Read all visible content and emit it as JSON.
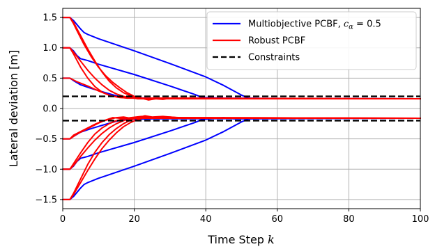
{
  "chart_data": {
    "type": "line",
    "xlabel": "Time Step",
    "xlabel_var": "k",
    "ylabel": "Lateral deviation [m]",
    "xlim": [
      0,
      100
    ],
    "ylim": [
      -1.65,
      1.65
    ],
    "xticks": [
      0,
      20,
      40,
      60,
      80,
      100
    ],
    "yticks": [
      -1.5,
      -1.0,
      -0.5,
      0.0,
      0.5,
      1.0,
      1.5
    ],
    "ytick_labels": [
      "−1.5",
      "−1.0",
      "−0.5",
      "0.0",
      "0.5",
      "1.0",
      "1.5"
    ],
    "grid": true,
    "legend_position": "upper-right",
    "legend": [
      {
        "label": "Multiobjective PCBF, ",
        "math": "c",
        "sub": "α",
        "suffix": " = 0.5",
        "color": "#0000ff",
        "style": "solid"
      },
      {
        "label": "Robust PCBF",
        "color": "#ff0000",
        "style": "solid"
      },
      {
        "label": "Constraints",
        "color": "#000000",
        "style": "dashed"
      }
    ],
    "constraints": [
      0.2,
      -0.2
    ],
    "series": [
      {
        "group": "Multiobjective PCBF",
        "color": "#0000ff",
        "points": [
          [
            0,
            1.5
          ],
          [
            2,
            1.5
          ],
          [
            3,
            1.45
          ],
          [
            4,
            1.38
          ],
          [
            5,
            1.31
          ],
          [
            6,
            1.25
          ],
          [
            7,
            1.22
          ],
          [
            10,
            1.15
          ],
          [
            20,
            0.95
          ],
          [
            30,
            0.74
          ],
          [
            40,
            0.52
          ],
          [
            45,
            0.38
          ],
          [
            50,
            0.22
          ],
          [
            52,
            0.17
          ],
          [
            60,
            0.16
          ],
          [
            100,
            0.16
          ]
        ]
      },
      {
        "group": "Multiobjective PCBF",
        "color": "#0000ff",
        "points": [
          [
            0,
            1.0
          ],
          [
            2,
            1.0
          ],
          [
            3,
            0.95
          ],
          [
            4,
            0.87
          ],
          [
            5,
            0.82
          ],
          [
            7,
            0.79
          ],
          [
            10,
            0.73
          ],
          [
            20,
            0.56
          ],
          [
            30,
            0.37
          ],
          [
            37,
            0.23
          ],
          [
            39,
            0.18
          ],
          [
            45,
            0.17
          ],
          [
            100,
            0.16
          ]
        ]
      },
      {
        "group": "Multiobjective PCBF",
        "color": "#0000ff",
        "points": [
          [
            0,
            0.5
          ],
          [
            2,
            0.5
          ],
          [
            3,
            0.46
          ],
          [
            5,
            0.39
          ],
          [
            8,
            0.33
          ],
          [
            12,
            0.26
          ],
          [
            15,
            0.21
          ],
          [
            17,
            0.18
          ],
          [
            25,
            0.17
          ],
          [
            100,
            0.16
          ]
        ]
      },
      {
        "group": "Multiobjective PCBF",
        "color": "#0000ff",
        "points": [
          [
            0,
            -0.5
          ],
          [
            2,
            -0.5
          ],
          [
            3,
            -0.46
          ],
          [
            5,
            -0.39
          ],
          [
            8,
            -0.33
          ],
          [
            12,
            -0.26
          ],
          [
            15,
            -0.21
          ],
          [
            17,
            -0.18
          ],
          [
            25,
            -0.17
          ],
          [
            100,
            -0.16
          ]
        ]
      },
      {
        "group": "Multiobjective PCBF",
        "color": "#0000ff",
        "points": [
          [
            0,
            -1.0
          ],
          [
            2,
            -1.0
          ],
          [
            3,
            -0.95
          ],
          [
            4,
            -0.87
          ],
          [
            5,
            -0.82
          ],
          [
            7,
            -0.79
          ],
          [
            10,
            -0.73
          ],
          [
            20,
            -0.56
          ],
          [
            30,
            -0.37
          ],
          [
            37,
            -0.23
          ],
          [
            39,
            -0.18
          ],
          [
            45,
            -0.15
          ],
          [
            48,
            -0.17
          ],
          [
            100,
            -0.16
          ]
        ]
      },
      {
        "group": "Multiobjective PCBF",
        "color": "#0000ff",
        "points": [
          [
            0,
            -1.5
          ],
          [
            2,
            -1.5
          ],
          [
            3,
            -1.45
          ],
          [
            4,
            -1.38
          ],
          [
            5,
            -1.31
          ],
          [
            6,
            -1.25
          ],
          [
            7,
            -1.22
          ],
          [
            10,
            -1.15
          ],
          [
            20,
            -0.95
          ],
          [
            30,
            -0.74
          ],
          [
            40,
            -0.52
          ],
          [
            45,
            -0.38
          ],
          [
            50,
            -0.22
          ],
          [
            52,
            -0.17
          ],
          [
            60,
            -0.16
          ],
          [
            100,
            -0.16
          ]
        ]
      },
      {
        "group": "Robust PCBF",
        "color": "#ff0000",
        "points": [
          [
            0,
            1.5
          ],
          [
            2,
            1.5
          ],
          [
            3,
            1.4
          ],
          [
            4,
            1.28
          ],
          [
            6,
            1.05
          ],
          [
            8,
            0.85
          ],
          [
            10,
            0.68
          ],
          [
            12,
            0.54
          ],
          [
            14,
            0.43
          ],
          [
            16,
            0.34
          ],
          [
            18,
            0.26
          ],
          [
            20,
            0.2
          ],
          [
            22,
            0.17
          ],
          [
            24,
            0.14
          ],
          [
            26,
            0.16
          ],
          [
            28,
            0.15
          ],
          [
            30,
            0.17
          ],
          [
            35,
            0.16
          ],
          [
            100,
            0.16
          ]
        ]
      },
      {
        "group": "Robust PCBF",
        "color": "#ff0000",
        "points": [
          [
            0,
            1.5
          ],
          [
            2,
            1.5
          ],
          [
            3,
            1.42
          ],
          [
            5,
            1.2
          ],
          [
            7,
            0.98
          ],
          [
            9,
            0.78
          ],
          [
            11,
            0.6
          ],
          [
            13,
            0.45
          ],
          [
            15,
            0.34
          ],
          [
            17,
            0.26
          ],
          [
            19,
            0.21
          ],
          [
            21,
            0.18
          ],
          [
            23,
            0.16
          ],
          [
            25,
            0.17
          ],
          [
            100,
            0.16
          ]
        ]
      },
      {
        "group": "Robust PCBF",
        "color": "#ff0000",
        "points": [
          [
            0,
            1.0
          ],
          [
            2,
            1.0
          ],
          [
            3,
            0.93
          ],
          [
            5,
            0.78
          ],
          [
            7,
            0.63
          ],
          [
            9,
            0.5
          ],
          [
            11,
            0.39
          ],
          [
            13,
            0.3
          ],
          [
            15,
            0.24
          ],
          [
            17,
            0.2
          ],
          [
            19,
            0.18
          ],
          [
            21,
            0.16
          ],
          [
            100,
            0.16
          ]
        ]
      },
      {
        "group": "Robust PCBF",
        "color": "#ff0000",
        "points": [
          [
            0,
            1.0
          ],
          [
            2,
            1.0
          ],
          [
            3,
            0.9
          ],
          [
            5,
            0.68
          ],
          [
            7,
            0.5
          ],
          [
            9,
            0.36
          ],
          [
            11,
            0.27
          ],
          [
            13,
            0.22
          ],
          [
            15,
            0.19
          ],
          [
            18,
            0.17
          ],
          [
            100,
            0.16
          ]
        ]
      },
      {
        "group": "Robust PCBF",
        "color": "#ff0000",
        "points": [
          [
            0,
            0.5
          ],
          [
            2,
            0.5
          ],
          [
            4,
            0.44
          ],
          [
            7,
            0.37
          ],
          [
            10,
            0.29
          ],
          [
            13,
            0.22
          ],
          [
            16,
            0.18
          ],
          [
            20,
            0.17
          ],
          [
            100,
            0.16
          ]
        ]
      },
      {
        "group": "Robust PCBF",
        "color": "#ff0000",
        "points": [
          [
            0,
            -0.5
          ],
          [
            2,
            -0.5
          ],
          [
            3,
            -0.44
          ],
          [
            5,
            -0.38
          ],
          [
            7,
            -0.32
          ],
          [
            9,
            -0.26
          ],
          [
            11,
            -0.21
          ],
          [
            13,
            -0.18
          ],
          [
            15,
            -0.15
          ],
          [
            17,
            -0.14
          ],
          [
            19,
            -0.16
          ],
          [
            22,
            -0.14
          ],
          [
            25,
            -0.16
          ],
          [
            30,
            -0.15
          ],
          [
            100,
            -0.16
          ]
        ]
      },
      {
        "group": "Robust PCBF",
        "color": "#ff0000",
        "points": [
          [
            0,
            -0.5
          ],
          [
            2,
            -0.5
          ],
          [
            4,
            -0.42
          ],
          [
            7,
            -0.33
          ],
          [
            10,
            -0.24
          ],
          [
            12,
            -0.19
          ],
          [
            14,
            -0.15
          ],
          [
            16,
            -0.16
          ],
          [
            100,
            -0.16
          ]
        ]
      },
      {
        "group": "Robust PCBF",
        "color": "#ff0000",
        "points": [
          [
            0,
            -1.0
          ],
          [
            2,
            -1.0
          ],
          [
            3,
            -0.91
          ],
          [
            5,
            -0.73
          ],
          [
            7,
            -0.56
          ],
          [
            9,
            -0.42
          ],
          [
            11,
            -0.32
          ],
          [
            13,
            -0.25
          ],
          [
            15,
            -0.2
          ],
          [
            17,
            -0.17
          ],
          [
            19,
            -0.15
          ],
          [
            22,
            -0.13
          ],
          [
            25,
            -0.15
          ],
          [
            30,
            -0.14
          ],
          [
            35,
            -0.16
          ],
          [
            100,
            -0.16
          ]
        ]
      },
      {
        "group": "Robust PCBF",
        "color": "#ff0000",
        "points": [
          [
            0,
            -1.0
          ],
          [
            2,
            -1.0
          ],
          [
            3,
            -0.94
          ],
          [
            5,
            -0.79
          ],
          [
            7,
            -0.65
          ],
          [
            9,
            -0.52
          ],
          [
            11,
            -0.41
          ],
          [
            13,
            -0.32
          ],
          [
            15,
            -0.25
          ],
          [
            17,
            -0.2
          ],
          [
            19,
            -0.17
          ],
          [
            21,
            -0.15
          ],
          [
            23,
            -0.13
          ],
          [
            26,
            -0.15
          ],
          [
            100,
            -0.16
          ]
        ]
      },
      {
        "group": "Robust PCBF",
        "color": "#ff0000",
        "points": [
          [
            0,
            -1.5
          ],
          [
            2,
            -1.5
          ],
          [
            3,
            -1.4
          ],
          [
            5,
            -1.16
          ],
          [
            7,
            -0.92
          ],
          [
            9,
            -0.72
          ],
          [
            11,
            -0.56
          ],
          [
            13,
            -0.43
          ],
          [
            15,
            -0.33
          ],
          [
            17,
            -0.25
          ],
          [
            19,
            -0.19
          ],
          [
            21,
            -0.15
          ],
          [
            23,
            -0.12
          ],
          [
            25,
            -0.14
          ],
          [
            28,
            -0.13
          ],
          [
            32,
            -0.15
          ],
          [
            100,
            -0.16
          ]
        ]
      },
      {
        "group": "Robust PCBF",
        "color": "#ff0000",
        "points": [
          [
            0,
            -1.5
          ],
          [
            2,
            -1.5
          ],
          [
            3,
            -1.42
          ],
          [
            5,
            -1.22
          ],
          [
            7,
            -1.02
          ],
          [
            9,
            -0.83
          ],
          [
            11,
            -0.66
          ],
          [
            13,
            -0.52
          ],
          [
            15,
            -0.4
          ],
          [
            17,
            -0.3
          ],
          [
            19,
            -0.23
          ],
          [
            21,
            -0.18
          ],
          [
            23,
            -0.15
          ],
          [
            26,
            -0.16
          ],
          [
            100,
            -0.16
          ]
        ]
      }
    ]
  }
}
